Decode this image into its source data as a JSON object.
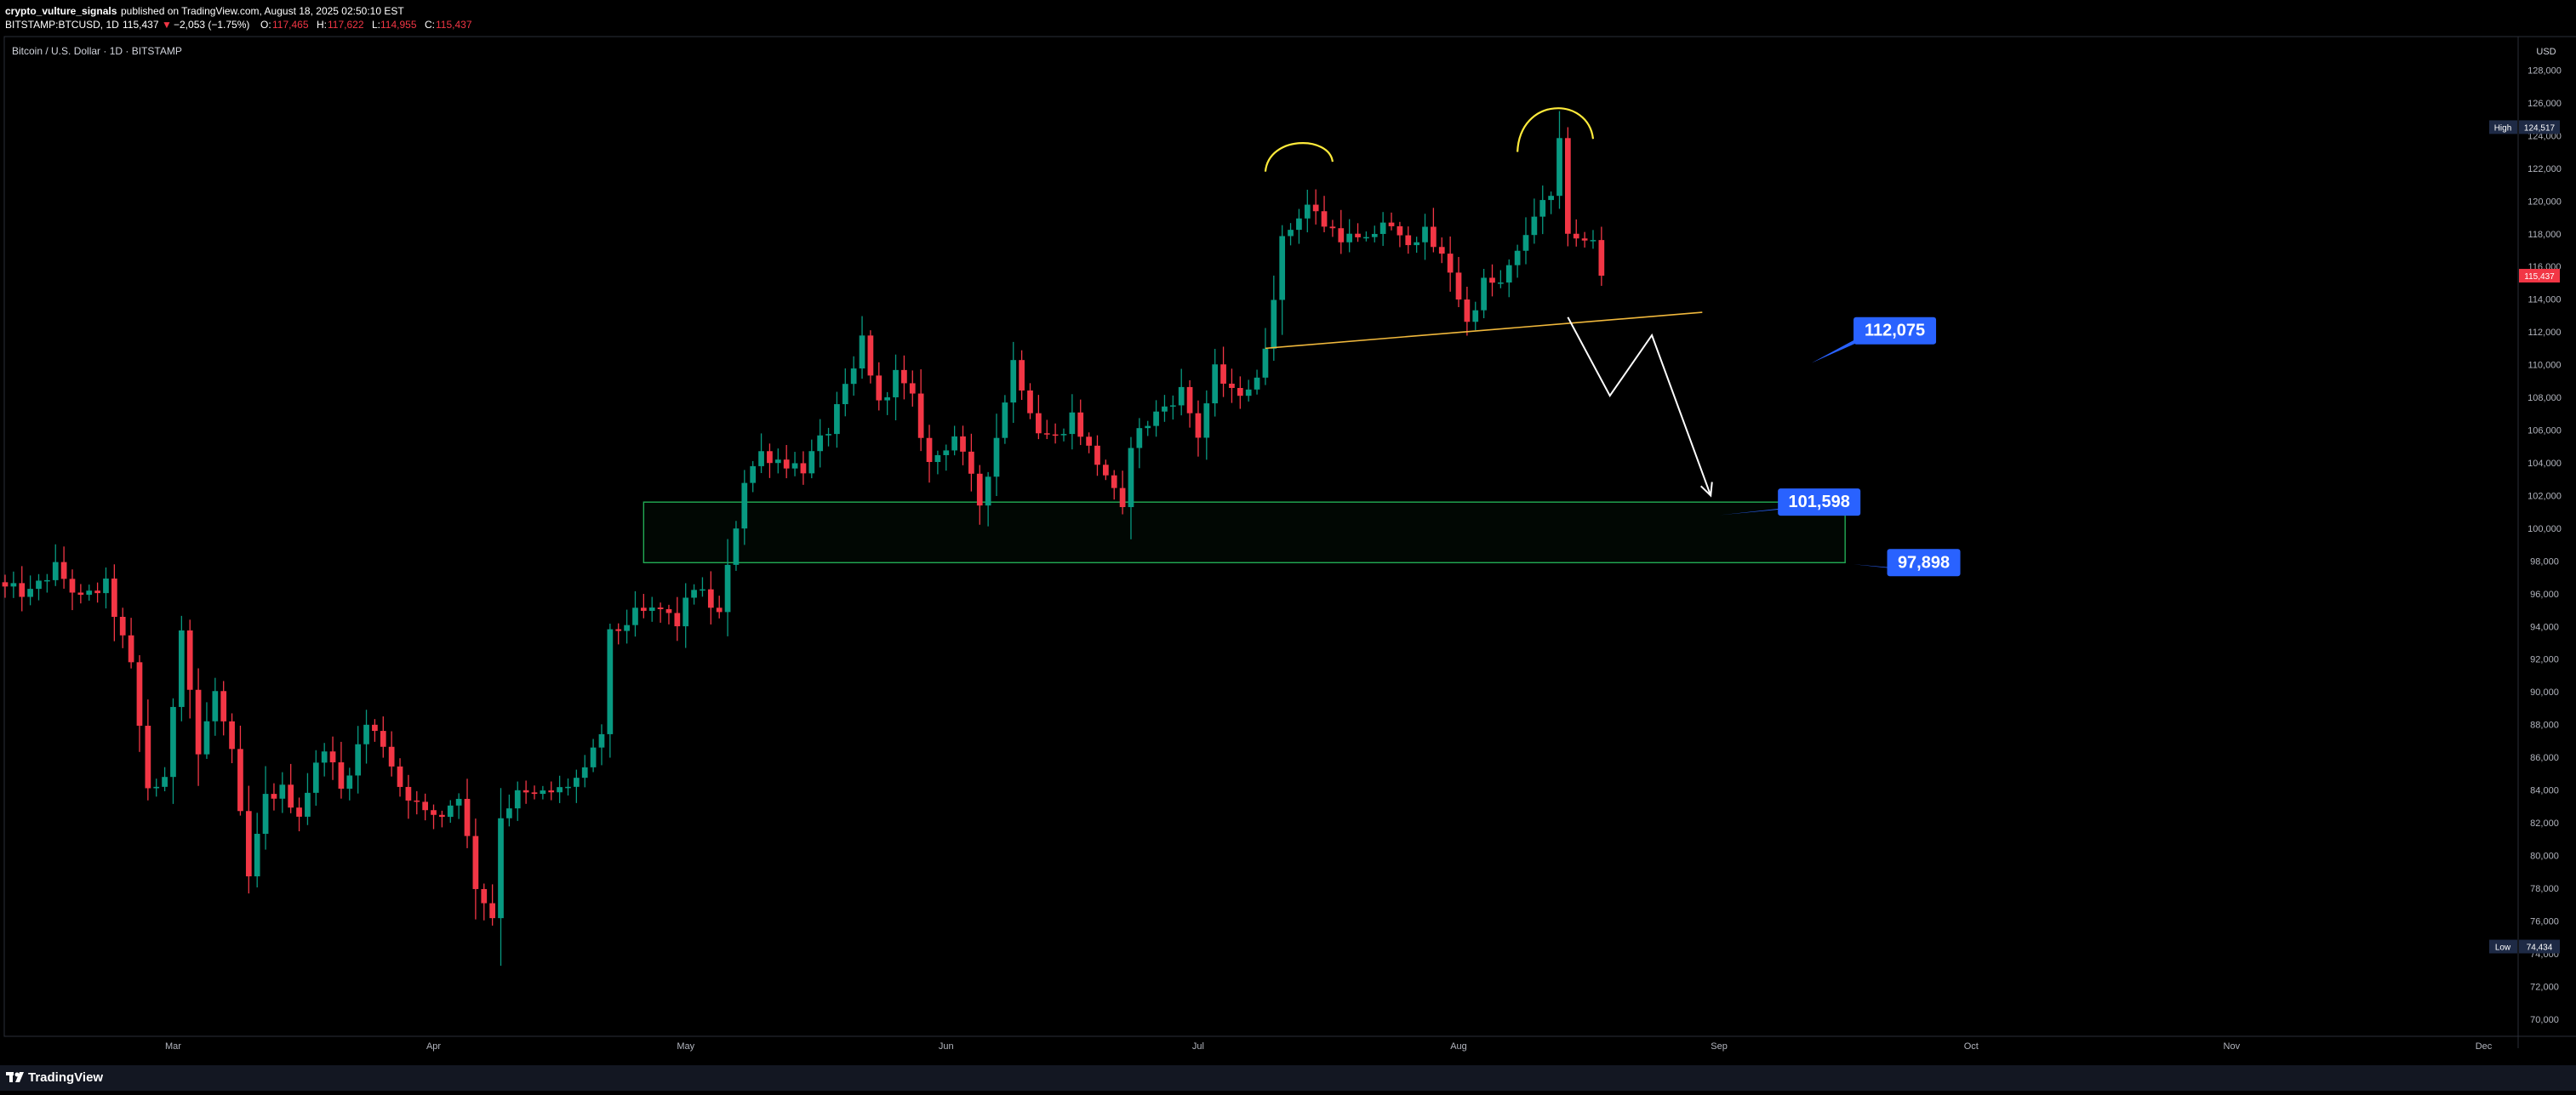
{
  "header": {
    "author": "crypto_vulture_signals",
    "published": "published on TradingView.com, August 18, 2025 02:50:10 EST",
    "symbol": "BITSTAMP:BTCUSD, 1D",
    "last": "115,437",
    "change_symbol": "▼",
    "change": "−2,053 (−1.75%)",
    "o_label": "O:",
    "o_value": "117,465",
    "h_label": "H:",
    "h_value": "117,622",
    "l_label": "L:",
    "l_value": "114,955",
    "c_label": "C:",
    "c_value": "115,437"
  },
  "chart_title": "Bitcoin / U.S. Dollar · 1D · BITSTAMP",
  "currency": "USD",
  "footer": {
    "brand": "TradingView",
    "logo": "tradingview-logo-icon"
  },
  "colors": {
    "background": "#000000",
    "up": "#089981",
    "down": "#f23645",
    "axis_text": "#b2b5be",
    "label_blue": "#2962ff",
    "zone": "#22ab55",
    "trend": "#f0b83c",
    "peak": "#ffeb3b",
    "projection": "#ffffff"
  },
  "chart_data": {
    "type": "candlestick",
    "interval": "1D",
    "ylim": [
      69000,
      130000
    ],
    "xlim": [
      "2025-02-09",
      "2025-12-05"
    ],
    "y_ticks": [
      70000,
      72000,
      74000,
      76000,
      78000,
      80000,
      82000,
      84000,
      86000,
      88000,
      90000,
      92000,
      94000,
      96000,
      98000,
      100000,
      102000,
      104000,
      106000,
      108000,
      110000,
      112000,
      114000,
      116000,
      118000,
      120000,
      122000,
      124000,
      126000,
      128000
    ],
    "y_tick_labels": [
      "70,000",
      "72,000",
      "74,000",
      "76,000",
      "78,000",
      "80,000",
      "82,000",
      "84,000",
      "86,000",
      "88,000",
      "90,000",
      "92,000",
      "94,000",
      "96,000",
      "98,000",
      "100,000",
      "102,000",
      "104,000",
      "106,000",
      "108,000",
      "110,000",
      "112,000",
      "114,000",
      "116,000",
      "118,000",
      "120,000",
      "122,000",
      "124,000",
      "126,000",
      "128,000"
    ],
    "x_ticks": [
      {
        "date": "2025-03-01",
        "label": "Mar"
      },
      {
        "date": "2025-04-01",
        "label": "Apr"
      },
      {
        "date": "2025-05-01",
        "label": "May"
      },
      {
        "date": "2025-06-01",
        "label": "Jun"
      },
      {
        "date": "2025-07-01",
        "label": "Jul"
      },
      {
        "date": "2025-08-01",
        "label": "Aug"
      },
      {
        "date": "2025-09-01",
        "label": "Sep"
      },
      {
        "date": "2025-10-01",
        "label": "Oct"
      },
      {
        "date": "2025-11-01",
        "label": "Nov"
      },
      {
        "date": "2025-12-01",
        "label": "Dec"
      }
    ],
    "close_path": [
      [
        "2025-02-09",
        96300
      ],
      [
        "2025-02-12",
        96000
      ],
      [
        "2025-02-15",
        97600
      ],
      [
        "2025-02-18",
        95600
      ],
      [
        "2025-02-21",
        96500
      ],
      [
        "2025-02-24",
        91500
      ],
      [
        "2025-02-26",
        84200
      ],
      [
        "2025-02-28",
        84400
      ],
      [
        "2025-03-02",
        94200
      ],
      [
        "2025-03-04",
        86200
      ],
      [
        "2025-03-06",
        90000
      ],
      [
        "2025-03-08",
        86100
      ],
      [
        "2025-03-10",
        78600
      ],
      [
        "2025-03-12",
        83500
      ],
      [
        "2025-03-14",
        84000
      ],
      [
        "2025-03-16",
        82600
      ],
      [
        "2025-03-19",
        86800
      ],
      [
        "2025-03-21",
        84000
      ],
      [
        "2025-03-24",
        88000
      ],
      [
        "2025-03-26",
        86900
      ],
      [
        "2025-03-28",
        84300
      ],
      [
        "2025-03-31",
        82500
      ],
      [
        "2025-04-02",
        82500
      ],
      [
        "2025-04-04",
        83800
      ],
      [
        "2025-04-06",
        78200
      ],
      [
        "2025-04-08",
        76300
      ],
      [
        "2025-04-09",
        82500
      ],
      [
        "2025-04-11",
        83700
      ],
      [
        "2025-04-13",
        83600
      ],
      [
        "2025-04-16",
        84000
      ],
      [
        "2025-04-19",
        85000
      ],
      [
        "2025-04-21",
        87500
      ],
      [
        "2025-04-22",
        93400
      ],
      [
        "2025-04-25",
        94700
      ],
      [
        "2025-04-28",
        95000
      ],
      [
        "2025-04-30",
        94200
      ],
      [
        "2025-05-02",
        96500
      ],
      [
        "2025-05-05",
        94700
      ],
      [
        "2025-05-08",
        103000
      ],
      [
        "2025-05-10",
        104600
      ],
      [
        "2025-05-13",
        104000
      ],
      [
        "2025-05-15",
        103700
      ],
      [
        "2025-05-18",
        106000
      ],
      [
        "2025-05-21",
        109600
      ],
      [
        "2025-05-22",
        111600
      ],
      [
        "2025-05-24",
        107500
      ],
      [
        "2025-05-26",
        109400
      ],
      [
        "2025-05-28",
        107800
      ],
      [
        "2025-05-30",
        103900
      ],
      [
        "2025-06-02",
        105700
      ],
      [
        "2025-06-05",
        101500
      ],
      [
        "2025-06-07",
        105600
      ],
      [
        "2025-06-09",
        110200
      ],
      [
        "2025-06-12",
        106000
      ],
      [
        "2025-06-14",
        105500
      ],
      [
        "2025-06-16",
        106900
      ],
      [
        "2025-06-18",
        104800
      ],
      [
        "2025-06-20",
        103300
      ],
      [
        "2025-06-22",
        100900
      ],
      [
        "2025-06-23",
        105300
      ],
      [
        "2025-06-26",
        107000
      ],
      [
        "2025-06-29",
        108400
      ],
      [
        "2025-07-01",
        105700
      ],
      [
        "2025-07-03",
        109600
      ],
      [
        "2025-07-05",
        108200
      ],
      [
        "2025-07-08",
        108900
      ],
      [
        "2025-07-09",
        111300
      ],
      [
        "2025-07-11",
        117500
      ],
      [
        "2025-07-13",
        119200
      ],
      [
        "2025-07-14",
        119800
      ],
      [
        "2025-07-16",
        118600
      ],
      [
        "2025-07-18",
        117900
      ],
      [
        "2025-07-21",
        117400
      ],
      [
        "2025-07-23",
        118800
      ],
      [
        "2025-07-25",
        117600
      ],
      [
        "2025-07-28",
        118000
      ],
      [
        "2025-07-31",
        115800
      ],
      [
        "2025-08-02",
        112500
      ],
      [
        "2025-08-04",
        115000
      ],
      [
        "2025-08-06",
        114900
      ],
      [
        "2025-08-08",
        116700
      ],
      [
        "2025-08-10",
        119300
      ],
      [
        "2025-08-12",
        120100
      ],
      [
        "2025-08-13",
        123400
      ],
      [
        "2025-08-14",
        118300
      ],
      [
        "2025-08-16",
        117400
      ],
      [
        "2025-08-17",
        117500
      ],
      [
        "2025-08-18",
        115437
      ]
    ],
    "last_price": 115437,
    "last_price_label": "115,437",
    "high_label": "High",
    "high_value": "124,517",
    "high_price": 124517,
    "low_label": "Low",
    "low_value": "74,434",
    "low_price": 74434,
    "annotations": {
      "demand_zone": {
        "date_from": "2025-04-26",
        "date_to": "2025-09-16",
        "price_from": 97898,
        "price_to": 101598
      },
      "neckline": [
        [
          "2025-07-09",
          111000
        ],
        [
          "2025-08-30",
          113200
        ]
      ],
      "projection_path": [
        [
          "2025-08-14",
          112900
        ],
        [
          "2025-08-19",
          108100
        ],
        [
          "2025-08-24",
          111800
        ],
        [
          "2025-08-31",
          102000
        ]
      ],
      "peak_arcs": [
        {
          "start": [
            "2025-07-09",
            121800
          ],
          "top": [
            "2025-07-13",
            123600
          ],
          "end": [
            "2025-07-17",
            122400
          ]
        },
        {
          "start": [
            "2025-08-08",
            123000
          ],
          "top": [
            "2025-08-11",
            126000
          ],
          "end": [
            "2025-08-17",
            123800
          ]
        }
      ],
      "price_labels": [
        {
          "text": "112,075",
          "date": "2025-09-17",
          "price": 112075,
          "anchor": [
            "2025-09-12",
            110100
          ]
        },
        {
          "text": "101,598",
          "date": "2025-09-08",
          "price": 101598,
          "anchor": [
            "2025-09-01",
            100800
          ]
        },
        {
          "text": "97,898",
          "date": "2025-09-21",
          "price": 97898,
          "anchor": [
            "2025-09-17",
            97800
          ]
        }
      ]
    }
  }
}
